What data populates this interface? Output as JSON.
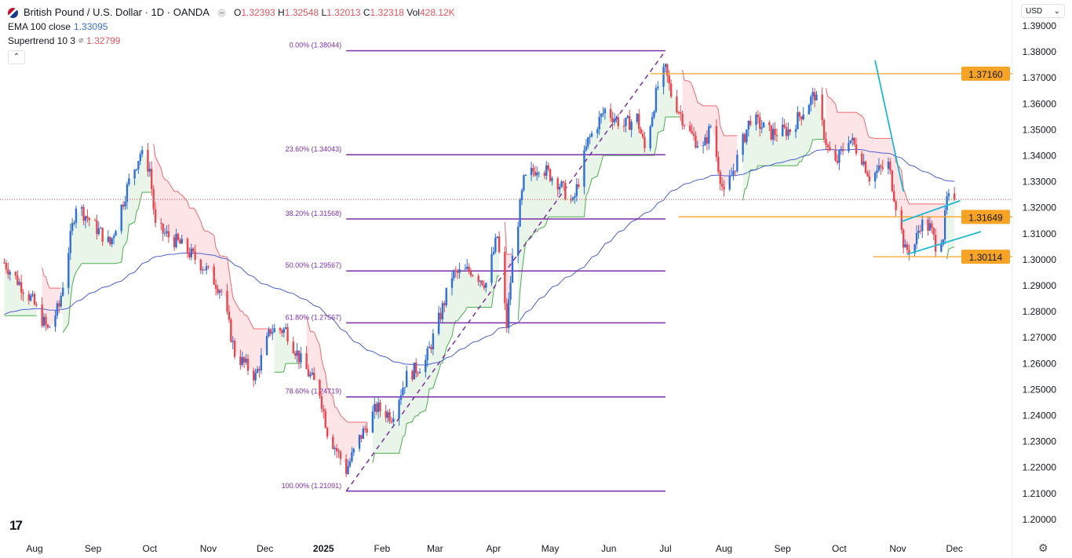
{
  "header": {
    "symbol": "British Pound / U.S. Dollar · 1D · OANDA",
    "open_label": "O",
    "open": "1.32393",
    "high_label": "H",
    "high": "1.32548",
    "low_label": "L",
    "low": "1.32013",
    "close_label": "C",
    "close": "1.32318",
    "vol_label": "Vol",
    "vol": "428.12K"
  },
  "indicators": [
    {
      "name": "EMA 100 close",
      "value": "1.33095",
      "color": "#3a6fd8"
    },
    {
      "name": "Supertrend 10 3",
      "symbol": "⌀",
      "value": "1.32799",
      "color": "#e8535f"
    }
  ],
  "currency": "USD",
  "colors": {
    "up": "#2f6fd6",
    "down": "#e8454f",
    "fib": "#7b2fa8",
    "level": "#f7a325",
    "trendline": "#1fb8d3",
    "ema": "#4a5fd0"
  },
  "chart_data": {
    "type": "candlestick",
    "ylim": [
      1.195,
      1.395
    ],
    "y_ticks": [
      "1.39000",
      "1.38000",
      "1.37000",
      "1.36000",
      "1.35000",
      "1.34000",
      "1.33000",
      "1.32000",
      "1.31000",
      "1.30000",
      "1.29000",
      "1.28000",
      "1.27000",
      "1.26000",
      "1.25000",
      "1.24000",
      "1.23000",
      "1.22000",
      "1.21000",
      "1.20000"
    ],
    "x_ticks": [
      {
        "label": "Aug",
        "date": "2024-08-01"
      },
      {
        "label": "Sep",
        "date": "2024-09-01"
      },
      {
        "label": "Oct",
        "date": "2024-10-01"
      },
      {
        "label": "Nov",
        "date": "2024-11-01"
      },
      {
        "label": "Dec",
        "date": "2024-12-01"
      },
      {
        "label": "2025",
        "date": "2025-01-01",
        "bold": true
      },
      {
        "label": "Feb",
        "date": "2025-02-01"
      },
      {
        "label": "Mar",
        "date": "2025-03-01"
      },
      {
        "label": "Apr",
        "date": "2025-04-01"
      },
      {
        "label": "May",
        "date": "2025-05-01"
      },
      {
        "label": "Jun",
        "date": "2025-06-01"
      },
      {
        "label": "Jul",
        "date": "2025-07-01"
      },
      {
        "label": "Aug",
        "date": "2025-08-01"
      },
      {
        "label": "Sep",
        "date": "2025-09-01"
      },
      {
        "label": "Oct",
        "date": "2025-10-01"
      },
      {
        "label": "Nov",
        "date": "2025-11-01"
      },
      {
        "label": "Dec",
        "date": "2025-12-01"
      }
    ],
    "approx_closes": [
      [
        "2024-07-16",
        1.2988
      ],
      [
        "2024-07-30",
        1.2852
      ],
      [
        "2024-08-08",
        1.273
      ],
      [
        "2024-08-14",
        1.282
      ],
      [
        "2024-08-23",
        1.3214
      ],
      [
        "2024-08-30",
        1.3154
      ],
      [
        "2024-09-10",
        1.306
      ],
      [
        "2024-09-20",
        1.33
      ],
      [
        "2024-09-26",
        1.341
      ],
      [
        "2024-10-01",
        1.335
      ],
      [
        "2024-10-04",
        1.3124
      ],
      [
        "2024-10-17",
        1.306
      ],
      [
        "2024-10-30",
        1.297
      ],
      [
        "2024-11-08",
        1.288
      ],
      [
        "2024-11-15",
        1.264
      ],
      [
        "2024-11-26",
        1.255
      ],
      [
        "2024-12-04",
        1.273
      ],
      [
        "2024-12-12",
        1.273
      ],
      [
        "2024-12-20",
        1.261
      ],
      [
        "2024-12-30",
        1.249
      ],
      [
        "2025-01-03",
        1.234
      ],
      [
        "2025-01-13",
        1.219
      ],
      [
        "2025-01-20",
        1.231
      ],
      [
        "2025-01-29",
        1.243
      ],
      [
        "2025-02-06",
        1.24
      ],
      [
        "2025-02-14",
        1.255
      ],
      [
        "2025-02-24",
        1.261
      ],
      [
        "2025-03-04",
        1.279
      ],
      [
        "2025-03-10",
        1.294
      ],
      [
        "2025-03-20",
        1.296
      ],
      [
        "2025-03-28",
        1.291
      ],
      [
        "2025-04-03",
        1.309
      ],
      [
        "2025-04-08",
        1.2746
      ],
      [
        "2025-04-11",
        1.3003
      ],
      [
        "2025-04-17",
        1.33
      ],
      [
        "2025-04-25",
        1.3365
      ],
      [
        "2025-05-05",
        1.33
      ],
      [
        "2025-05-13",
        1.3214
      ],
      [
        "2025-05-21",
        1.3456
      ],
      [
        "2025-05-30",
        1.3577
      ],
      [
        "2025-06-09",
        1.3516
      ],
      [
        "2025-06-16",
        1.3546
      ],
      [
        "2025-06-20",
        1.3426
      ],
      [
        "2025-06-27",
        1.3667
      ],
      [
        "2025-07-01",
        1.3728
      ],
      [
        "2025-07-04",
        1.3637
      ],
      [
        "2025-07-14",
        1.3486
      ],
      [
        "2025-07-21",
        1.3426
      ],
      [
        "2025-07-25",
        1.3516
      ],
      [
        "2025-08-01",
        1.3244
      ],
      [
        "2025-08-07",
        1.3365
      ],
      [
        "2025-08-15",
        1.3546
      ],
      [
        "2025-08-26",
        1.3486
      ],
      [
        "2025-09-05",
        1.35
      ],
      [
        "2025-09-15",
        1.3607
      ],
      [
        "2025-09-18",
        1.3637
      ],
      [
        "2025-09-25",
        1.3426
      ],
      [
        "2025-09-29",
        1.3365
      ],
      [
        "2025-10-06",
        1.3471
      ],
      [
        "2025-10-13",
        1.3395
      ],
      [
        "2025-10-17",
        1.332
      ],
      [
        "2025-10-27",
        1.3365
      ],
      [
        "2025-10-31",
        1.3214
      ],
      [
        "2025-11-05",
        1.3033
      ],
      [
        "2025-11-10",
        1.306
      ],
      [
        "2025-11-13",
        1.3139
      ],
      [
        "2025-11-18",
        1.3124
      ],
      [
        "2025-11-21",
        1.306
      ],
      [
        "2025-11-25",
        1.3094
      ],
      [
        "2025-11-27",
        1.3229
      ],
      [
        "2025-12-01",
        1.3232
      ]
    ],
    "current_price": 1.32318,
    "fibonacci": {
      "from": {
        "date": "2025-01-13",
        "price": 1.21091
      },
      "to": {
        "date": "2025-07-01",
        "price": 1.38044
      },
      "levels": [
        {
          "label": "0.00% (1.38044)",
          "price": 1.38044
        },
        {
          "label": "23.60% (1.34043)",
          "price": 1.34043
        },
        {
          "label": "38.20% (1.31568)",
          "price": 1.31568
        },
        {
          "label": "50.00% (1.29567)",
          "price": 1.29567
        },
        {
          "label": "61.80% (1.27567)",
          "price": 1.27567
        },
        {
          "label": "78.60% (1.24719)",
          "price": 1.24719
        },
        {
          "label": "100.00% (1.21091)",
          "price": 1.21091
        }
      ]
    },
    "horizontal_levels": [
      {
        "label": "1.37160",
        "price": 1.3716,
        "from": "2025-06-23"
      },
      {
        "label": "1.31649",
        "price": 1.31649,
        "from": "2025-07-08"
      },
      {
        "label": "1.30114",
        "price": 1.30114,
        "from": "2025-10-19"
      }
    ],
    "trendlines": [
      [
        [
          "2025-10-20",
          1.3767
        ],
        [
          "2025-11-04",
          1.3262
        ]
      ],
      [
        [
          "2025-11-03",
          1.3147
        ],
        [
          "2025-12-04",
          1.3227
        ]
      ],
      [
        [
          "2025-11-06",
          1.3021
        ],
        [
          "2025-12-15",
          1.3108
        ]
      ]
    ]
  }
}
